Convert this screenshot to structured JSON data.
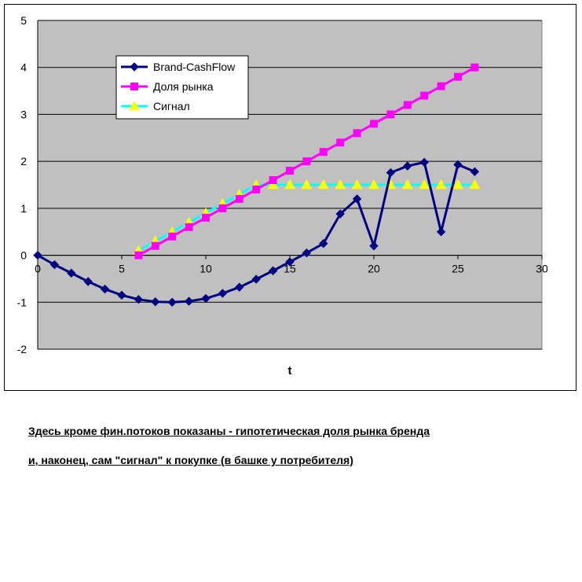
{
  "chart_data": {
    "type": "line",
    "xlabel": "t",
    "ylabel": "",
    "xlim": [
      0,
      30
    ],
    "ylim": [
      -2,
      5
    ],
    "xticks": [
      0,
      5,
      10,
      15,
      20,
      25,
      30
    ],
    "yticks": [
      -2,
      -1,
      0,
      1,
      2,
      3,
      4,
      5
    ],
    "grid": "horizontal",
    "legend_position": "top-left",
    "plot_background": "#c0c0c0",
    "series": [
      {
        "name": "Brand-CashFlow",
        "color": "#000080",
        "marker": "diamond",
        "x": [
          0,
          1,
          2,
          3,
          4,
          5,
          6,
          7,
          8,
          9,
          10,
          11,
          12,
          13,
          14,
          15,
          16,
          17,
          18,
          19,
          20,
          21,
          22,
          23,
          24,
          25,
          26
        ],
        "y": [
          0,
          -0.2,
          -0.38,
          -0.56,
          -0.72,
          -0.85,
          -0.94,
          -0.99,
          -1.0,
          -0.98,
          -0.92,
          -0.81,
          -0.68,
          -0.51,
          -0.33,
          -0.14,
          0.05,
          0.25,
          0.88,
          1.2,
          0.2,
          1.76,
          1.9,
          1.98,
          0.5,
          1.93,
          1.78
        ]
      },
      {
        "name": "Доля рынка",
        "color": "#ff00ff",
        "marker": "square",
        "x": [
          6,
          7,
          8,
          9,
          10,
          11,
          12,
          13,
          14,
          15,
          16,
          17,
          18,
          19,
          20,
          21,
          22,
          23,
          24,
          25,
          26
        ],
        "y": [
          0,
          0.2,
          0.4,
          0.6,
          0.8,
          1.0,
          1.2,
          1.4,
          1.6,
          1.8,
          2.0,
          2.2,
          2.4,
          2.6,
          2.8,
          3.0,
          3.2,
          3.4,
          3.6,
          3.8,
          4.0
        ]
      },
      {
        "name": "Сигнал",
        "color": "#00ffff",
        "marker": "triangle",
        "marker_color": "#ffff00",
        "x": [
          6,
          7,
          8,
          9,
          10,
          11,
          12,
          13,
          14,
          15,
          16,
          17,
          18,
          19,
          20,
          21,
          22,
          23,
          24,
          25,
          26
        ],
        "y": [
          0.1,
          0.3,
          0.5,
          0.7,
          0.9,
          1.1,
          1.3,
          1.5,
          1.5,
          1.5,
          1.5,
          1.5,
          1.5,
          1.5,
          1.5,
          1.5,
          1.5,
          1.5,
          1.5,
          1.5,
          1.5
        ]
      }
    ]
  },
  "caption": {
    "line1": "Здесь кроме фин.потоков показаны - гипотетическая доля рынка бренда",
    "line2": "и, наконец, сам \"сигнал\" к покупке (в башке у потребителя)"
  }
}
